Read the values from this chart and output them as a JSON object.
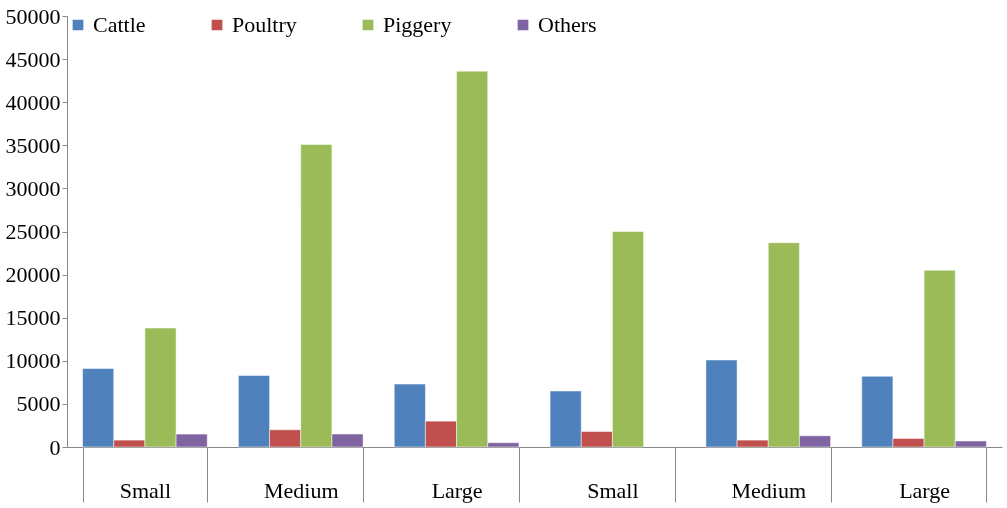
{
  "chart_data": {
    "type": "bar",
    "categories": [
      "Small",
      "Medium",
      "Large",
      "Small",
      "Medium",
      "Large"
    ],
    "series": [
      {
        "name": "Cattle",
        "color": "#4f81bd",
        "values": [
          9100,
          8300,
          7300,
          6500,
          10100,
          8200
        ]
      },
      {
        "name": "Poultry",
        "color": "#c0504d",
        "values": [
          800,
          2000,
          3000,
          1800,
          800,
          1000
        ]
      },
      {
        "name": "Piggery",
        "color": "#9bbb59",
        "values": [
          13800,
          35100,
          43600,
          25000,
          23700,
          20500
        ]
      },
      {
        "name": "Others",
        "color": "#8064a2",
        "values": [
          1500,
          1500,
          500,
          null,
          1300,
          700
        ]
      }
    ],
    "ylim": [
      0,
      50000
    ],
    "yticks": [
      0,
      5000,
      10000,
      15000,
      20000,
      25000,
      30000,
      35000,
      40000,
      45000,
      50000
    ],
    "grid": false,
    "legend": "top"
  }
}
